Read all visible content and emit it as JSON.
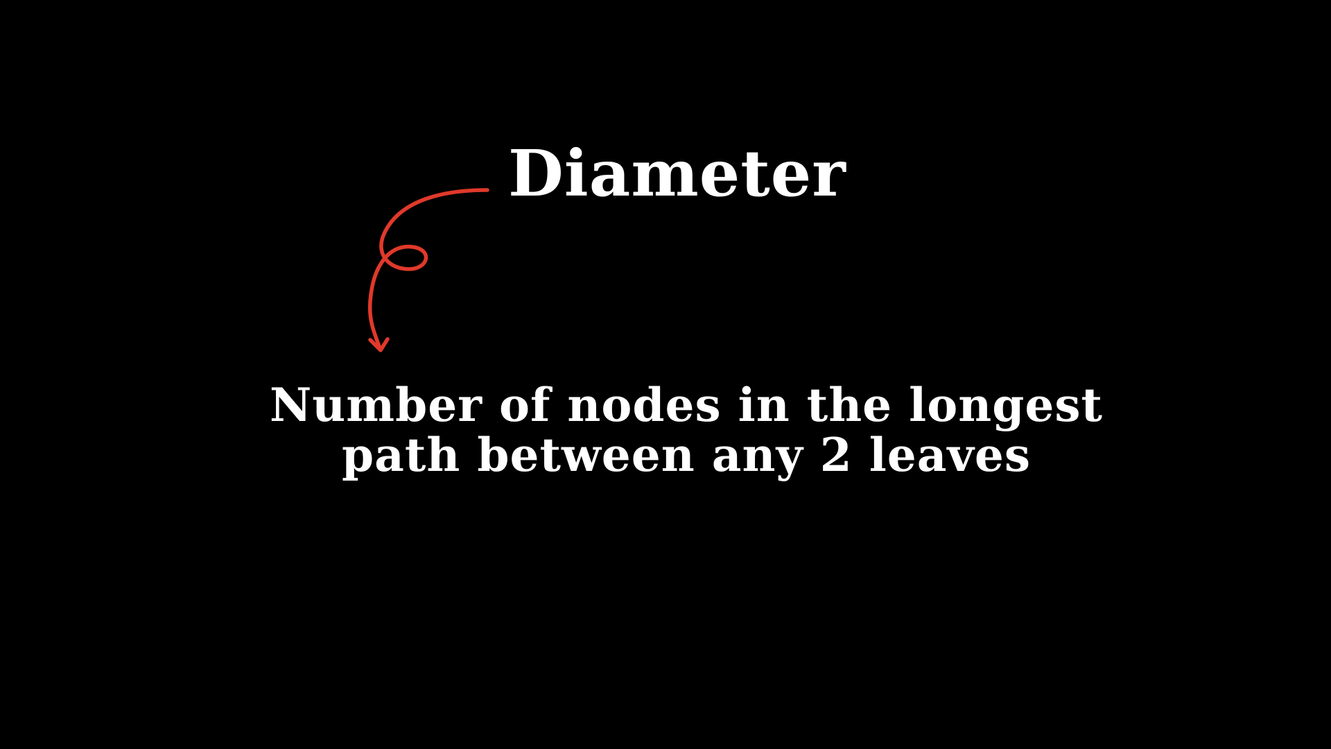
{
  "slide": {
    "title": "Diameter",
    "definition_lines": [
      "Number of nodes in the longest",
      "path between any 2 leaves"
    ],
    "arrow_icon": "curly-arrow-icon",
    "colors": {
      "background": "#000000",
      "text": "#ffffff",
      "arrow": "#e0392b"
    }
  }
}
